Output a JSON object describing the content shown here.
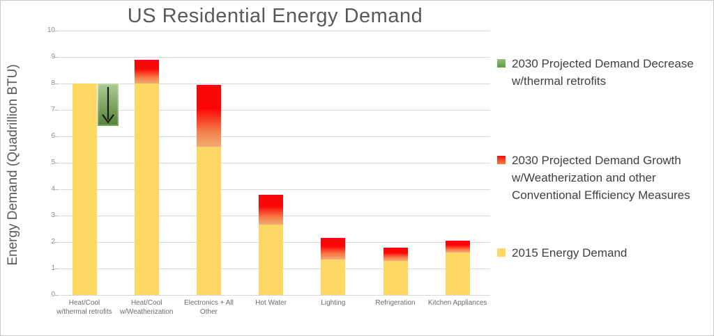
{
  "chart_data": {
    "type": "bar",
    "stacked": true,
    "title": "US Residential Energy Demand",
    "ylabel": "Energy Demand (Quadrillion BTU)",
    "ylim": [
      0,
      10
    ],
    "yticks": [
      0,
      1,
      2,
      3,
      4,
      5,
      6,
      7,
      8,
      9,
      10
    ],
    "grid": true,
    "legend_position": "right",
    "categories": [
      "Heat/Cool w/thermal retrofits",
      "Heat/Cool w/Weatherization",
      "Electronics + All Other",
      "Hot Water",
      "Lighting",
      "Refrigeration",
      "Kitchen Appliances"
    ],
    "category_tick_lines": [
      [
        "Heat/Cool",
        "w/thermal retrofits"
      ],
      [
        "Heat/Cool",
        "w/Weatherization"
      ],
      [
        "Electronics + All",
        "Other"
      ],
      [
        "Hot Water"
      ],
      [
        "Lighting"
      ],
      [
        "Refrigeration"
      ],
      [
        "Kitchen Appliances"
      ]
    ],
    "series": [
      {
        "name": "2015 Energy Demand",
        "color": "#FDD964",
        "values": [
          8.0,
          8.0,
          5.6,
          2.65,
          1.35,
          1.3,
          1.6
        ]
      },
      {
        "name": "2030 Projected Demand Growth w/Weatherization and other Conventional Efficiency Measures",
        "gradient_top": "#FA0606",
        "gradient_bottom": "#EFAC72",
        "values": [
          0,
          0.9,
          2.35,
          1.15,
          0.8,
          0.5,
          0.45
        ]
      }
    ],
    "annotation": {
      "name": "2030 Projected Demand Decrease w/thermal retrofits",
      "type": "down-arrow-box",
      "category": "Heat/Cool w/thermal retrofits",
      "category_index": 0,
      "from_value": 8.0,
      "to_value": 6.4,
      "gradient_top": "#ACCD95",
      "gradient_bottom": "#538135",
      "arrow_color": "#1a1a1a"
    },
    "legend": [
      {
        "swatch_gradient": [
          "#93C17B",
          "#5F9843"
        ],
        "lines": [
          "2030 Projected Demand Decrease",
          "w/thermal retrofits"
        ]
      },
      {
        "swatch_gradient": [
          "#F20D0D",
          "#EF8445"
        ],
        "lines": [
          "2030 Projected Demand Growth",
          "w/Weatherization and other",
          "Conventional Efficiency Measures"
        ]
      },
      {
        "swatch_gradient": [
          "#FDD964",
          "#FDD964"
        ],
        "lines": [
          "2015 Energy Demand"
        ]
      }
    ]
  }
}
